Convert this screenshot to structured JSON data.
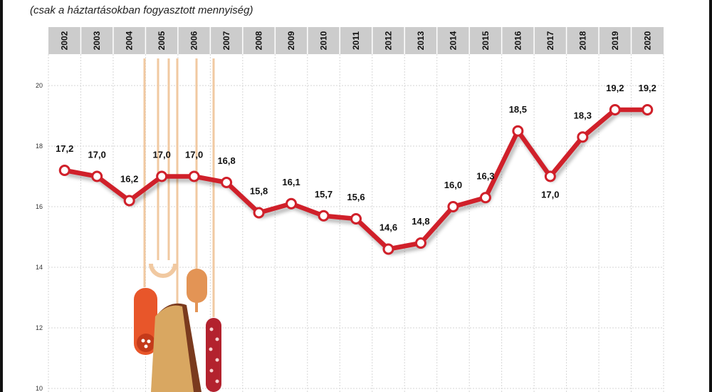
{
  "subtitle": "(csak a háztartásokban fogyasztott mennyiség)",
  "colors": {
    "line": "#d0202a",
    "point_fill": "#ffffff",
    "header_band": "#cccccc",
    "grid": "#d6d6d6",
    "text": "#111111",
    "sausage_red": "#e8562a",
    "bread_tan": "#d9a761",
    "bread_dark": "#7a3a1e",
    "salami_dark": "#b3222e",
    "string_color": "#f1c9a1"
  },
  "chart_data": {
    "type": "line",
    "title": "",
    "xlabel": "",
    "ylabel": "",
    "x": [
      "2002",
      "2003",
      "2004",
      "2005",
      "2006",
      "2007",
      "2008",
      "2009",
      "2010",
      "2011",
      "2012",
      "2013",
      "2014",
      "2015",
      "2016",
      "2017",
      "2018",
      "2019",
      "2020"
    ],
    "series": [
      {
        "values": [
          17.2,
          17.0,
          16.2,
          17.0,
          17.0,
          16.8,
          15.8,
          16.1,
          15.7,
          15.6,
          14.6,
          14.8,
          16.0,
          16.3,
          18.5,
          17.0,
          18.3,
          19.2,
          19.2
        ],
        "labels": [
          "17,2",
          "17,0",
          "16,2",
          "17,0",
          "17,0",
          "16,8",
          "15,8",
          "16,1",
          "15,7",
          "15,6",
          "14,6",
          "14,8",
          "16,0",
          "16,3",
          "18,5",
          "17,0",
          "18,3",
          "19,2",
          "19,2"
        ]
      }
    ],
    "y_ticks": [
      "10",
      "12",
      "14",
      "16",
      "18",
      "20"
    ],
    "ylim": [
      10,
      21.8
    ],
    "grid": true,
    "x_axis_position": "top"
  }
}
